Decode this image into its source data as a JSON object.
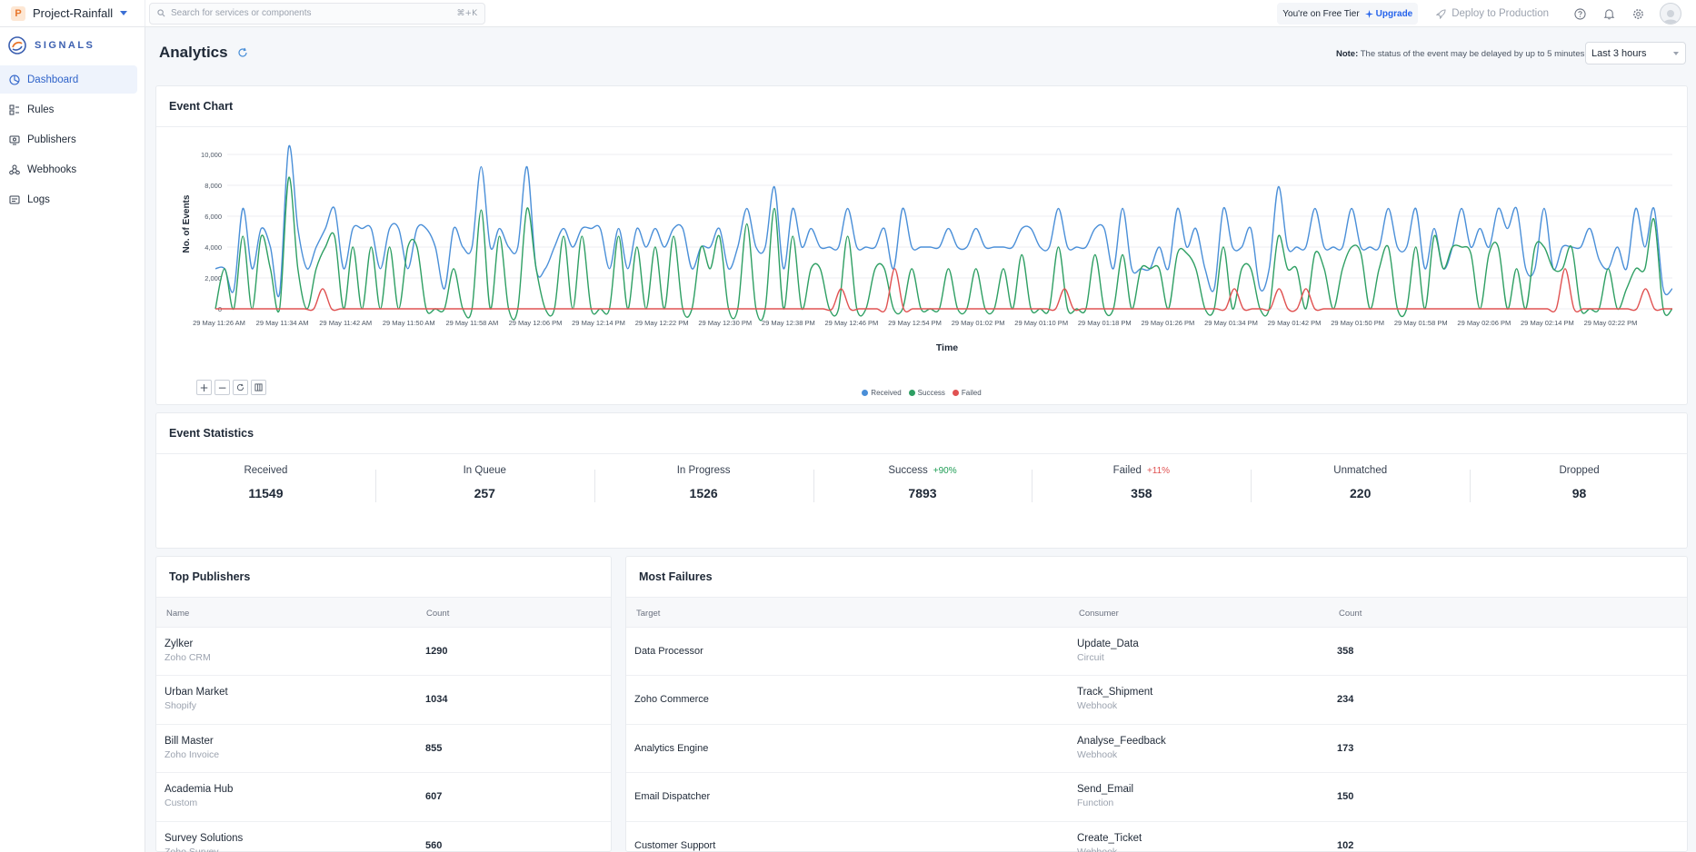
{
  "topbar": {
    "project_initial": "P",
    "project_name": "Project-Rainfall",
    "search_placeholder": "Search for services or components",
    "search_shortcut": "⌘+K",
    "tier_text": "You're on Free Tier",
    "upgrade_label": "Upgrade",
    "deploy_label": "Deploy to Production"
  },
  "sidebar": {
    "brand": "SIGNALS",
    "items": [
      {
        "label": "Dashboard",
        "icon": "dashboard-icon"
      },
      {
        "label": "Rules",
        "icon": "rules-icon"
      },
      {
        "label": "Publishers",
        "icon": "publishers-icon"
      },
      {
        "label": "Webhooks",
        "icon": "webhooks-icon"
      },
      {
        "label": "Logs",
        "icon": "logs-icon"
      }
    ]
  },
  "header": {
    "title": "Analytics",
    "note_label": "Note:",
    "note_text": "The status of the event may be delayed by up to 5 minutes.",
    "range": "Last 3 hours"
  },
  "event_chart": {
    "title": "Event Chart"
  },
  "chart_data": {
    "type": "line",
    "xlabel": "Time",
    "ylabel": "No. of Events",
    "ylim": [
      0,
      11000
    ],
    "yticks": [
      0,
      2000,
      4000,
      6000,
      8000,
      10000
    ],
    "ytick_labels": [
      "0",
      "2,000",
      "4,000",
      "6,000",
      "8,000",
      "10,000"
    ],
    "xtick_labels": [
      "29 May 11:26 AM",
      "29 May 11:34 AM",
      "29 May 11:42 AM",
      "29 May 11:50 AM",
      "29 May 11:58 AM",
      "29 May 12:06 PM",
      "29 May 12:14 PM",
      "29 May 12:22 PM",
      "29 May 12:30 PM",
      "29 May 12:38 PM",
      "29 May 12:46 PM",
      "29 May 12:54 PM",
      "29 May 01:02 PM",
      "29 May 01:10 PM",
      "29 May 01:18 PM",
      "29 May 01:26 PM",
      "29 May 01:34 PM",
      "29 May 01:42 PM",
      "29 May 01:50 PM",
      "29 May 01:58 PM",
      "29 May 02:06 PM",
      "29 May 02:14 PM",
      "29 May 02:22 PM"
    ],
    "grid": true,
    "legend": "bottom-center",
    "series": [
      {
        "name": "Received",
        "color": "#4a8fd8",
        "values": [
          2600,
          2600,
          1200,
          6500,
          2600,
          5200,
          4000,
          1000,
          10500,
          5200,
          2600,
          4000,
          5200,
          6500,
          2600,
          5200,
          5200,
          5200,
          2600,
          5200,
          5200,
          2600,
          5200,
          5200,
          4000,
          1300,
          5200,
          4000,
          4000,
          9200,
          4000,
          5200,
          4000,
          4000,
          9200,
          2600,
          2600,
          4000,
          5200,
          4000,
          5200,
          5200,
          5200,
          2600,
          5200,
          2600,
          5200,
          4000,
          5200,
          4000,
          5200,
          5200,
          2600,
          4000,
          4000,
          5200,
          2600,
          4000,
          6500,
          4000,
          4000,
          7900,
          2600,
          6500,
          4000,
          5200,
          4000,
          4000,
          4000,
          6500,
          4000,
          4000,
          4000,
          5200,
          2600,
          6500,
          4000,
          4000,
          4000,
          4000,
          5200,
          4000,
          4000,
          5200,
          4000,
          4000,
          4000,
          4000,
          5200,
          5200,
          4000,
          4000,
          6500,
          4000,
          4000,
          4000,
          5200,
          5200,
          2600,
          6500,
          2600,
          2600,
          2600,
          4000,
          2600,
          6500,
          4000,
          5200,
          2600,
          1300,
          6500,
          4000,
          4000,
          5200,
          1300,
          2600,
          7900,
          4000,
          4000,
          4000,
          6500,
          4000,
          4000,
          4000,
          6500,
          4000,
          4000,
          4000,
          6500,
          4000,
          4000,
          6500,
          2600,
          5200,
          2600,
          4000,
          6500,
          4000,
          5200,
          4000,
          6500,
          5200,
          6500,
          2600,
          2600,
          6500,
          2600,
          4000,
          4000,
          4000,
          5200,
          3200,
          2600,
          4000,
          2600,
          6500,
          4000,
          6500,
          1300,
          1300
        ]
      },
      {
        "name": "Success",
        "color": "#2e9f63",
        "values": [
          0,
          2600,
          0,
          4700,
          0,
          4700,
          2600,
          0,
          8500,
          2600,
          0,
          2600,
          4000,
          4700,
          0,
          4000,
          0,
          4000,
          0,
          4000,
          0,
          4000,
          4000,
          0,
          0,
          0,
          2600,
          0,
          0,
          6400,
          0,
          4700,
          0,
          0,
          6500,
          2600,
          0,
          0,
          4700,
          0,
          4700,
          0,
          0,
          0,
          4700,
          0,
          4000,
          0,
          4000,
          0,
          4700,
          0,
          0,
          4000,
          2600,
          4700,
          0,
          0,
          5500,
          0,
          0,
          6500,
          0,
          4700,
          0,
          2600,
          2600,
          0,
          0,
          4700,
          0,
          0,
          2600,
          2600,
          0,
          0,
          2600,
          0,
          0,
          0,
          2600,
          0,
          0,
          2600,
          0,
          0,
          2600,
          0,
          3500,
          0,
          0,
          0,
          4000,
          0,
          0,
          0,
          3500,
          0,
          0,
          3500,
          0,
          2600,
          2600,
          2600,
          0,
          3600,
          3600,
          2600,
          0,
          0,
          4000,
          0,
          2600,
          2600,
          0,
          0,
          4700,
          2600,
          2600,
          0,
          3600,
          2600,
          0,
          2600,
          4000,
          3600,
          0,
          2600,
          4000,
          0,
          0,
          4000,
          0,
          4700,
          2600,
          4000,
          4000,
          3600,
          0,
          3600,
          4000,
          0,
          2600,
          0,
          4000,
          4000,
          2600,
          2600,
          4000,
          0,
          0,
          0,
          2600,
          0,
          1300,
          2600,
          2600,
          5800,
          0,
          0
        ]
      },
      {
        "name": "Failed",
        "color": "#e05252",
        "values": [
          0,
          0,
          0,
          0,
          0,
          0,
          0,
          0,
          0,
          0,
          0,
          0,
          1300,
          0,
          0,
          0,
          0,
          0,
          0,
          0,
          0,
          0,
          0,
          0,
          0,
          0,
          0,
          0,
          0,
          0,
          0,
          0,
          0,
          0,
          0,
          0,
          0,
          0,
          0,
          0,
          0,
          0,
          0,
          0,
          0,
          0,
          0,
          0,
          0,
          0,
          0,
          0,
          0,
          0,
          0,
          0,
          0,
          0,
          0,
          0,
          0,
          0,
          0,
          0,
          0,
          0,
          0,
          0,
          0,
          0,
          1300,
          0,
          0,
          0,
          0,
          0,
          2600,
          0,
          0,
          0,
          0,
          0,
          0,
          0,
          0,
          0,
          0,
          0,
          0,
          0,
          0,
          0,
          0,
          0,
          0,
          1300,
          0,
          0,
          0,
          0,
          0,
          0,
          0,
          0,
          0,
          0,
          0,
          0,
          0,
          0,
          0,
          0,
          0,
          0,
          1300,
          0,
          0,
          0,
          0,
          1300,
          0,
          0,
          1300,
          0,
          0,
          0,
          0,
          0,
          0,
          0,
          0,
          0,
          0,
          0,
          0,
          0,
          0,
          0,
          0,
          0,
          0,
          0,
          0,
          0,
          0,
          0,
          0,
          0,
          0,
          0,
          0,
          2600,
          0,
          0,
          0,
          0,
          0,
          0,
          0,
          0,
          1300,
          0,
          0,
          0
        ]
      }
    ]
  },
  "stats": {
    "title": "Event Statistics",
    "items": [
      {
        "label": "Received",
        "value": "11549",
        "trend": "",
        "trend_color": ""
      },
      {
        "label": "In Queue",
        "value": "257",
        "trend": "",
        "trend_color": ""
      },
      {
        "label": "In Progress",
        "value": "1526",
        "trend": "",
        "trend_color": ""
      },
      {
        "label": "Success",
        "value": "7893",
        "trend": "+90%",
        "trend_color": "#1f9d55"
      },
      {
        "label": "Failed",
        "value": "358",
        "trend": "+11%",
        "trend_color": "#e05252"
      },
      {
        "label": "Unmatched",
        "value": "220",
        "trend": "",
        "trend_color": ""
      },
      {
        "label": "Dropped",
        "value": "98",
        "trend": "",
        "trend_color": ""
      }
    ]
  },
  "publishers": {
    "title": "Top Publishers",
    "col_name": "Name",
    "col_count": "Count",
    "rows": [
      {
        "name": "Zylker",
        "sub": "Zoho CRM",
        "count": "1290"
      },
      {
        "name": "Urban Market",
        "sub": "Shopify",
        "count": "1034"
      },
      {
        "name": "Bill Master",
        "sub": "Zoho Invoice",
        "count": "855"
      },
      {
        "name": "Academia Hub",
        "sub": "Custom",
        "count": "607"
      },
      {
        "name": "Survey Solutions",
        "sub": "Zoho Survey",
        "count": "560"
      }
    ]
  },
  "failures": {
    "title": "Most Failures",
    "col_target": "Target",
    "col_consumer": "Consumer",
    "col_count": "Count",
    "rows": [
      {
        "target": "Data Processor",
        "consumer": "Update_Data",
        "type": "Circuit",
        "count": "358"
      },
      {
        "target": "Zoho Commerce",
        "consumer": "Track_Shipment",
        "type": "Webhook",
        "count": "234"
      },
      {
        "target": "Analytics Engine",
        "consumer": "Analyse_Feedback",
        "type": "Webhook",
        "count": "173"
      },
      {
        "target": "Email Dispatcher",
        "consumer": "Send_Email",
        "type": "Function",
        "count": "150"
      },
      {
        "target": "Customer Support",
        "consumer": "Create_Ticket",
        "type": "Webhook",
        "count": "102"
      }
    ]
  }
}
